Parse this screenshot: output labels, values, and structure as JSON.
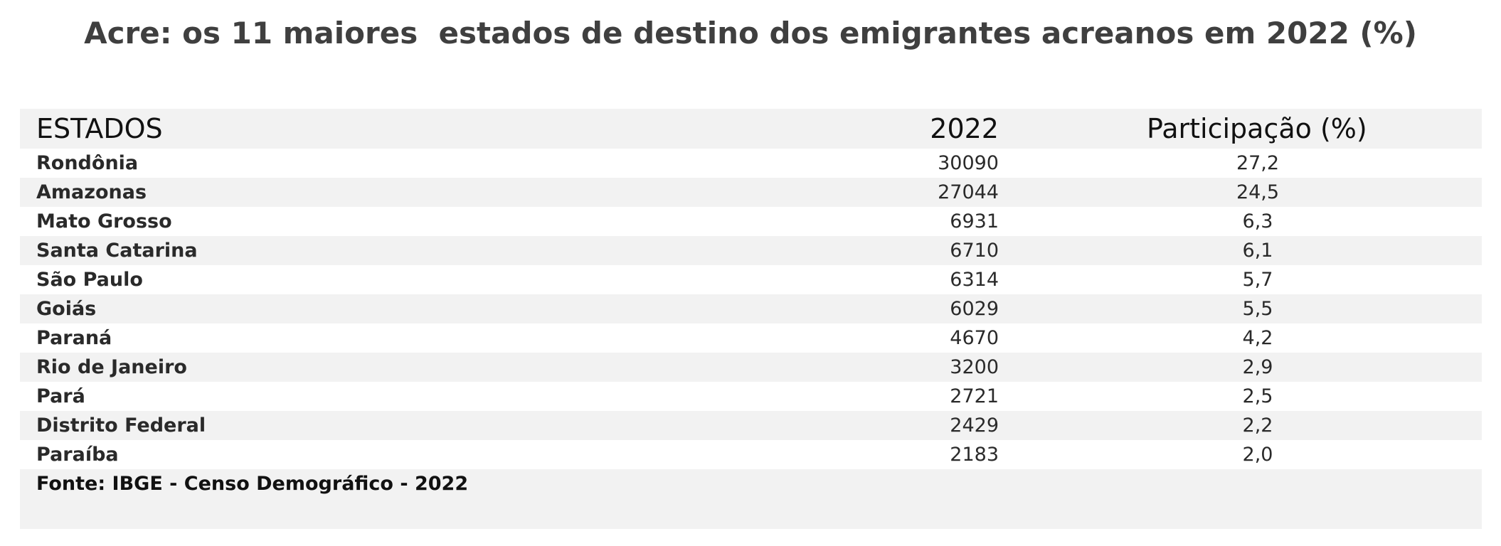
{
  "chart_data": {
    "type": "table",
    "title": "Acre: os 11 maiores  estados de destino dos emigrantes acreanos em 2022 (%)",
    "columns": [
      "ESTADOS",
      "2022",
      "Participação  (%)"
    ],
    "rows": [
      {
        "estado": "Rondônia",
        "valor": "30090",
        "participacao": "27,2"
      },
      {
        "estado": "Amazonas",
        "valor": "27044",
        "participacao": "24,5"
      },
      {
        "estado": "Mato Grosso",
        "valor": "6931",
        "participacao": "6,3"
      },
      {
        "estado": "Santa Catarina",
        "valor": "6710",
        "participacao": "6,1"
      },
      {
        "estado": "São Paulo",
        "valor": "6314",
        "participacao": "5,7"
      },
      {
        "estado": "Goiás",
        "valor": "6029",
        "participacao": "5,5"
      },
      {
        "estado": "Paraná",
        "valor": "4670",
        "participacao": "4,2"
      },
      {
        "estado": "Rio de Janeiro",
        "valor": "3200",
        "participacao": "2,9"
      },
      {
        "estado": "Pará",
        "valor": "2721",
        "participacao": "2,5"
      },
      {
        "estado": "Distrito Federal",
        "valor": "2429",
        "participacao": "2,2"
      },
      {
        "estado": "Paraíba",
        "valor": "2183",
        "participacao": "2,0"
      }
    ],
    "source": "Fonte: IBGE - Censo Demográfico - 2022",
    "colors": {
      "shaded_row": "#f2f2f2",
      "plain_row": "#ffffff",
      "title_text": "#3f3f3f"
    }
  }
}
